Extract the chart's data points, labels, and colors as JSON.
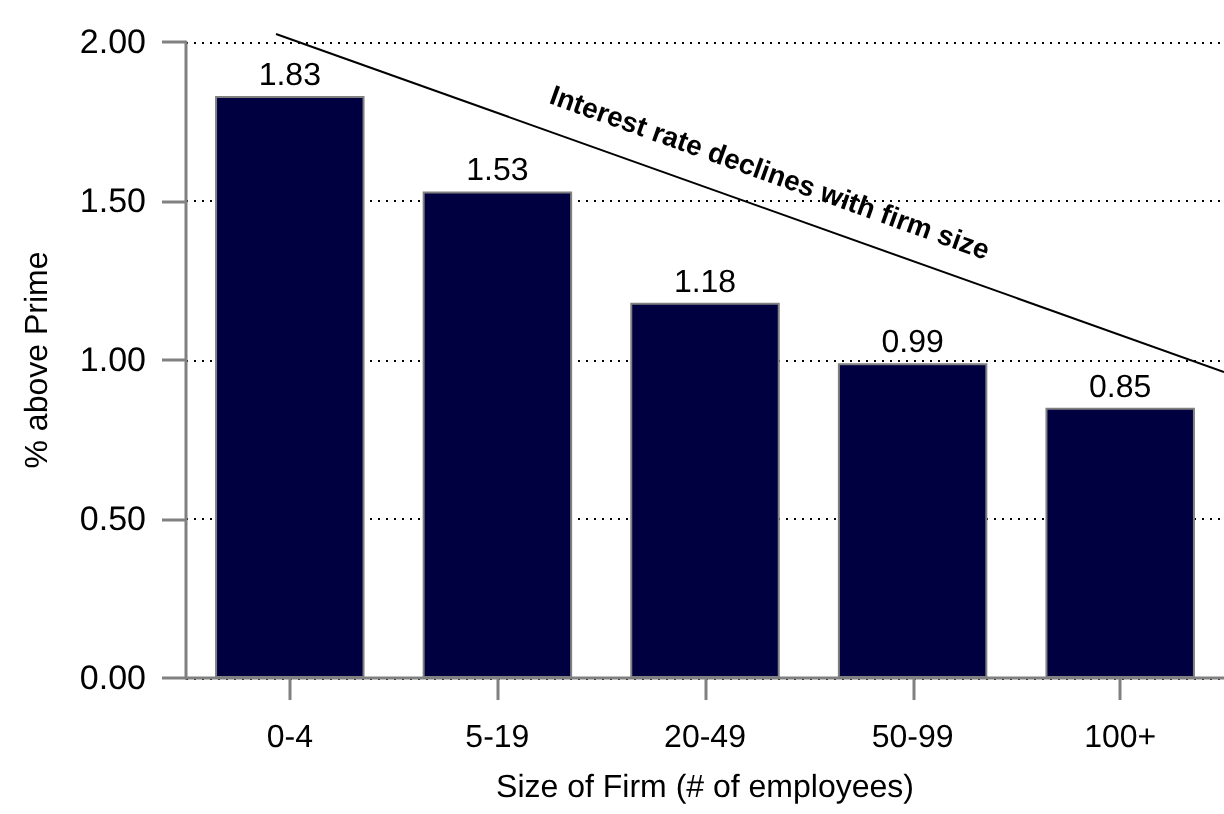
{
  "chart_data": {
    "type": "bar",
    "xlabel": "Size of Firm (# of employees)",
    "ylabel": "% above Prime",
    "categories": [
      "0-4",
      "5-19",
      "20-49",
      "50-99",
      "100+"
    ],
    "values": [
      1.83,
      1.53,
      1.18,
      0.99,
      0.85
    ],
    "color": "#000040",
    "ylim": [
      0,
      2
    ],
    "yticks": [
      {
        "value": 0,
        "label": "0.00"
      },
      {
        "value": 0.5,
        "label": "0.50"
      },
      {
        "value": 1,
        "label": "1.00"
      },
      {
        "value": 1.5,
        "label": "1.50"
      },
      {
        "value": 2,
        "label": "2.00"
      }
    ],
    "grid": "y",
    "data_labels": true,
    "annotations": [
      "Interest rate declines with firm size"
    ]
  }
}
